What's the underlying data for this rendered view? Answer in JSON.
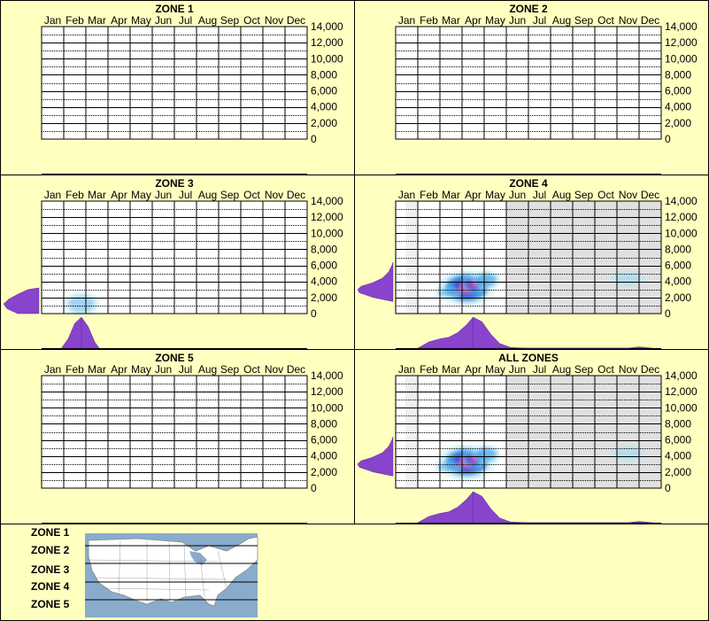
{
  "chart_data": {
    "type": "heatmap",
    "months": [
      "Jan",
      "Feb",
      "Mar",
      "Apr",
      "May",
      "Jun",
      "Jul",
      "Aug",
      "Sep",
      "Oct",
      "Nov",
      "Dec"
    ],
    "y_ticks": [
      "14,000",
      "12,000",
      "10,000",
      "8,000",
      "6,000",
      "4,000",
      "2,000",
      "0"
    ],
    "ylim": [
      0,
      14000
    ],
    "grid": true,
    "colors": {
      "background": "#ffffc0",
      "plot_bg": "#ffffff",
      "plot_bg_data": "#e0e0e0",
      "jan_band": "#f0f0f0",
      "marginal_fill": "#8844cc",
      "heat_outer": "#b8ecf8",
      "heat_mid": "#1e8ae0",
      "heat_inner": "#3030d0",
      "heat_core": "#e020a0"
    },
    "panels": [
      {
        "title": "ZONE 1",
        "has_data": false,
        "hotspots": [],
        "x_dist": [],
        "y_dist": []
      },
      {
        "title": "ZONE 2",
        "has_data": false,
        "hotspots": [],
        "x_dist": [],
        "y_dist": []
      },
      {
        "title": "ZONE 3",
        "has_data": true,
        "shaded": false,
        "hotspots": [
          {
            "month": 1.8,
            "elev": 1200,
            "sx": 0.5,
            "sy": 900,
            "level": 0.25
          }
        ],
        "x_dist": [
          [
            0.9,
            0
          ],
          [
            1.2,
            0.3
          ],
          [
            1.5,
            0.8
          ],
          [
            1.8,
            1.0
          ],
          [
            2.1,
            0.7
          ],
          [
            2.4,
            0.2
          ],
          [
            2.6,
            0
          ]
        ],
        "y_dist": [
          [
            0,
            0.6
          ],
          [
            600,
            0.9
          ],
          [
            1200,
            1.0
          ],
          [
            1800,
            0.85
          ],
          [
            2400,
            0.6
          ],
          [
            3000,
            0.3
          ],
          [
            3200,
            0
          ]
        ]
      },
      {
        "title": "ZONE 4",
        "has_data": true,
        "shaded": true,
        "hotspots": [
          {
            "month": 3.2,
            "elev": 3200,
            "sx": 0.8,
            "sy": 1400,
            "level": 0.75
          },
          {
            "month": 3.5,
            "elev": 3600,
            "sx": 0.35,
            "sy": 700,
            "level": 1.0
          },
          {
            "month": 2.4,
            "elev": 2600,
            "sx": 0.4,
            "sy": 400,
            "level": 0.35
          },
          {
            "month": 4.1,
            "elev": 4200,
            "sx": 0.4,
            "sy": 700,
            "level": 0.45
          },
          {
            "month": 10.5,
            "elev": 4300,
            "sx": 0.5,
            "sy": 600,
            "level": 0.1
          }
        ],
        "x_dist": [
          [
            1.0,
            0
          ],
          [
            1.5,
            0.2
          ],
          [
            2.0,
            0.3
          ],
          [
            2.4,
            0.35
          ],
          [
            2.8,
            0.5
          ],
          [
            3.2,
            0.75
          ],
          [
            3.5,
            1.0
          ],
          [
            3.9,
            0.85
          ],
          [
            4.3,
            0.45
          ],
          [
            4.7,
            0.15
          ],
          [
            5.2,
            0.02
          ],
          [
            6.0,
            0
          ],
          [
            10.5,
            0
          ],
          [
            11.0,
            0.04
          ],
          [
            11.6,
            0
          ]
        ],
        "y_dist": [
          [
            1500,
            0
          ],
          [
            2000,
            0.55
          ],
          [
            2600,
            0.95
          ],
          [
            3000,
            1.0
          ],
          [
            3400,
            0.9
          ],
          [
            3800,
            0.6
          ],
          [
            4400,
            0.3
          ],
          [
            5200,
            0.12
          ],
          [
            6000,
            0.03
          ],
          [
            6400,
            0
          ]
        ]
      },
      {
        "title": "ZONE 5",
        "has_data": false,
        "hotspots": [],
        "x_dist": [],
        "y_dist": []
      },
      {
        "title": "ALL ZONES",
        "has_data": true,
        "shaded": true,
        "hotspots": [
          {
            "month": 3.2,
            "elev": 3200,
            "sx": 0.8,
            "sy": 1400,
            "level": 0.75
          },
          {
            "month": 3.5,
            "elev": 3600,
            "sx": 0.35,
            "sy": 700,
            "level": 1.0
          },
          {
            "month": 2.4,
            "elev": 2600,
            "sx": 0.4,
            "sy": 400,
            "level": 0.35
          },
          {
            "month": 4.1,
            "elev": 4200,
            "sx": 0.4,
            "sy": 700,
            "level": 0.45
          },
          {
            "month": 10.5,
            "elev": 4300,
            "sx": 0.5,
            "sy": 600,
            "level": 0.1
          }
        ],
        "x_dist": [
          [
            1.0,
            0
          ],
          [
            1.5,
            0.2
          ],
          [
            2.0,
            0.3
          ],
          [
            2.4,
            0.35
          ],
          [
            2.8,
            0.5
          ],
          [
            3.2,
            0.75
          ],
          [
            3.5,
            1.0
          ],
          [
            3.9,
            0.85
          ],
          [
            4.3,
            0.45
          ],
          [
            4.7,
            0.15
          ],
          [
            5.2,
            0.02
          ],
          [
            6.0,
            0
          ],
          [
            10.5,
            0
          ],
          [
            11.0,
            0.04
          ],
          [
            11.6,
            0
          ]
        ],
        "y_dist": [
          [
            1500,
            0
          ],
          [
            2000,
            0.55
          ],
          [
            2600,
            0.95
          ],
          [
            3000,
            1.0
          ],
          [
            3400,
            0.9
          ],
          [
            3800,
            0.6
          ],
          [
            4400,
            0.3
          ],
          [
            5200,
            0.12
          ],
          [
            6000,
            0.03
          ],
          [
            6400,
            0
          ]
        ]
      }
    ],
    "legend": {
      "zones": [
        "ZONE 1",
        "ZONE 2",
        "ZONE 3",
        "ZONE 4",
        "ZONE 5"
      ],
      "map_colors": {
        "water": "#8aaccc",
        "land": "#ffffff",
        "border": "#888888"
      }
    }
  }
}
